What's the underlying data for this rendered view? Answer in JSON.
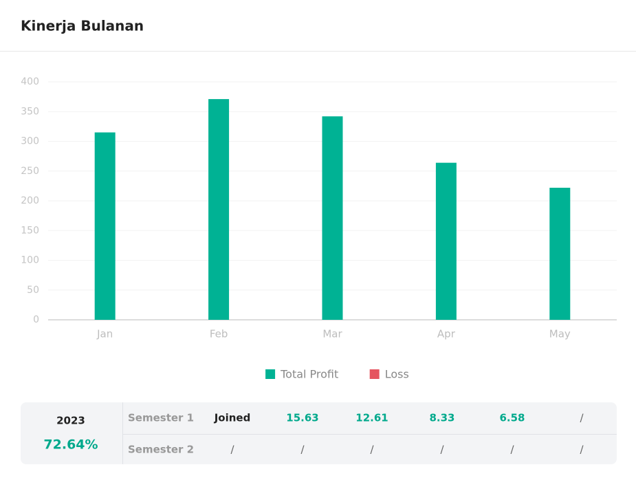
{
  "header": {
    "title": "Kinerja Bulanan"
  },
  "chart_data": {
    "type": "bar",
    "categories": [
      "Jan",
      "Feb",
      "Mar",
      "Apr",
      "May"
    ],
    "series": [
      {
        "name": "Total Profit",
        "color": "#00b294",
        "values": [
          315,
          371,
          342,
          264,
          222
        ]
      },
      {
        "name": "Loss",
        "color": "#e5545f",
        "values": [
          null,
          null,
          null,
          null,
          null
        ]
      }
    ],
    "ylim": [
      0,
      400
    ],
    "yticks": [
      0,
      50,
      100,
      150,
      200,
      250,
      300,
      350,
      400
    ],
    "grid": true,
    "legend": "bottom"
  },
  "table": {
    "year": "2023",
    "percent": "72.64%",
    "rows": [
      {
        "label": "Semester 1",
        "cells": [
          "Joined",
          "15.63",
          "12.61",
          "8.33",
          "6.58",
          "/"
        ]
      },
      {
        "label": "Semester 2",
        "cells": [
          "/",
          "/",
          "/",
          "/",
          "/",
          "/"
        ]
      }
    ]
  }
}
